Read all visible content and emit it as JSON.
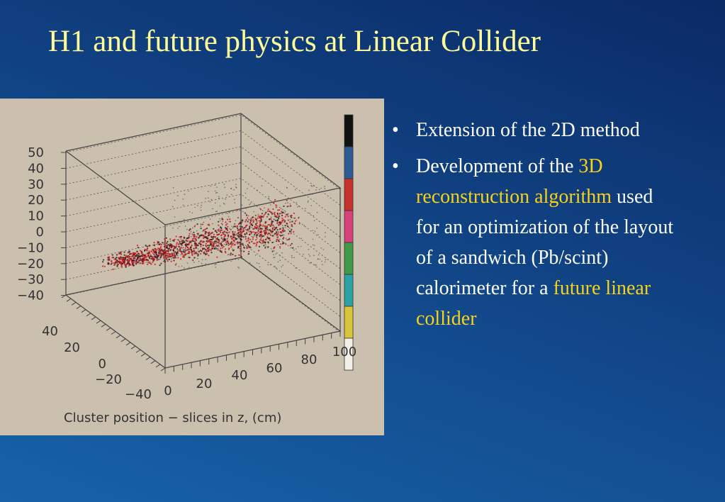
{
  "title": "H1 and future physics at Linear Collider",
  "figure": {
    "y_axis_labels": [
      "50",
      "40",
      "30",
      "20",
      "10",
      "0",
      "−10",
      "−20",
      "−30",
      "−40"
    ],
    "x_axis_labels": [
      "40",
      "20",
      "0",
      "−20",
      "−40"
    ],
    "z_axis_labels": [
      "0",
      "20",
      "40",
      "60",
      "80",
      "100"
    ],
    "caption": "Cluster position − slices in z, (cm)"
  },
  "bullets": [
    {
      "parts": [
        {
          "text": "Extension of the 2D method",
          "color": "#ffffff"
        }
      ]
    },
    {
      "parts": [
        {
          "text": "Development of the ",
          "color": "#ffffff"
        },
        {
          "text": "3D reconstruction algorithm",
          "color": "#f7d21a"
        },
        {
          "text": " used for an optimization of the layout of a sandwich (Pb/scint) calorimeter for a ",
          "color": "#ffffff"
        },
        {
          "text": "future linear collider",
          "color": "#f7d21a"
        }
      ]
    }
  ]
}
